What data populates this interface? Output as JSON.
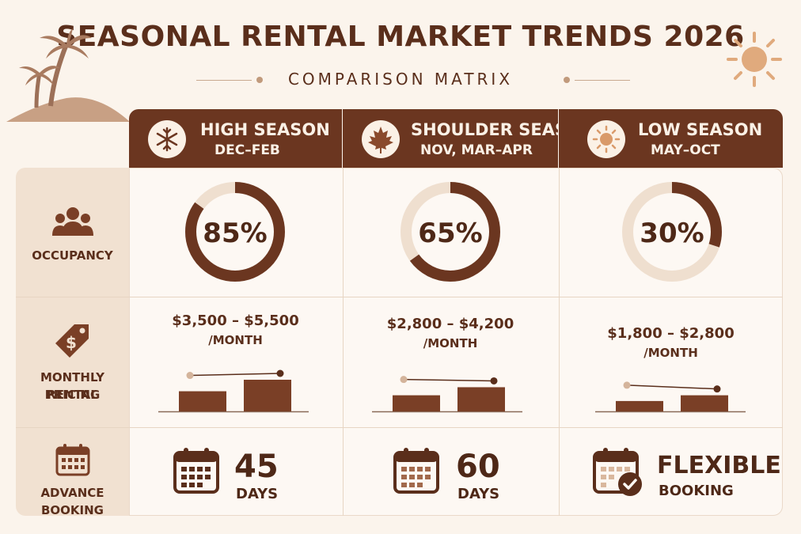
{
  "title": "SEASONAL RENTAL MARKET TRENDS 2026",
  "subtitle": "COMPARISON MATRIX",
  "row_labels": {
    "occupancy": "OCCUPANCY",
    "pricing_line1": "MONTHLY RENTAL",
    "pricing_line2": "PRICING",
    "booking": "ADVANCE BOOKING"
  },
  "seasons": [
    {
      "name": "HIGH SEASON",
      "months": "DEC–FEB",
      "icon": "snowflake-icon"
    },
    {
      "name": "SHOULDER SEASON",
      "months": "NOV, MAR–APR",
      "icon": "maple-leaf-icon"
    },
    {
      "name": "LOW SEASON",
      "months": "MAY–OCT",
      "icon": "sun-icon"
    }
  ],
  "colors": {
    "dark": "#6b3620",
    "track": "#efdfcf",
    "bar": "#7a3f26",
    "background": "#fbf4ec"
  },
  "chart_data": [
    {
      "type": "pie",
      "metric": "Occupancy",
      "categories": [
        "HIGH SEASON",
        "SHOULDER SEASON",
        "LOW SEASON"
      ],
      "values": [
        85,
        65,
        30
      ],
      "unit": "%",
      "labels": [
        "85%",
        "65%",
        "30%"
      ]
    },
    {
      "type": "bar",
      "metric": "Monthly Rental Pricing",
      "categories": [
        "HIGH SEASON",
        "SHOULDER SEASON",
        "LOW SEASON"
      ],
      "series": [
        {
          "values": [
            3500,
            2800,
            1800
          ]
        },
        {
          "values": [
            5500,
            4200,
            2800
          ]
        }
      ],
      "labels": [
        "$3,500 – $5,500",
        "$2,800 – $4,200",
        "$1,800 – $2,800"
      ],
      "unit_label": "/MONTH",
      "ylim": [
        0,
        11000
      ]
    }
  ],
  "booking": [
    {
      "value": "45",
      "unit": "DAYS"
    },
    {
      "value": "60",
      "unit": "DAYS"
    },
    {
      "value": "FLEXIBLE",
      "unit": "BOOKING"
    }
  ]
}
